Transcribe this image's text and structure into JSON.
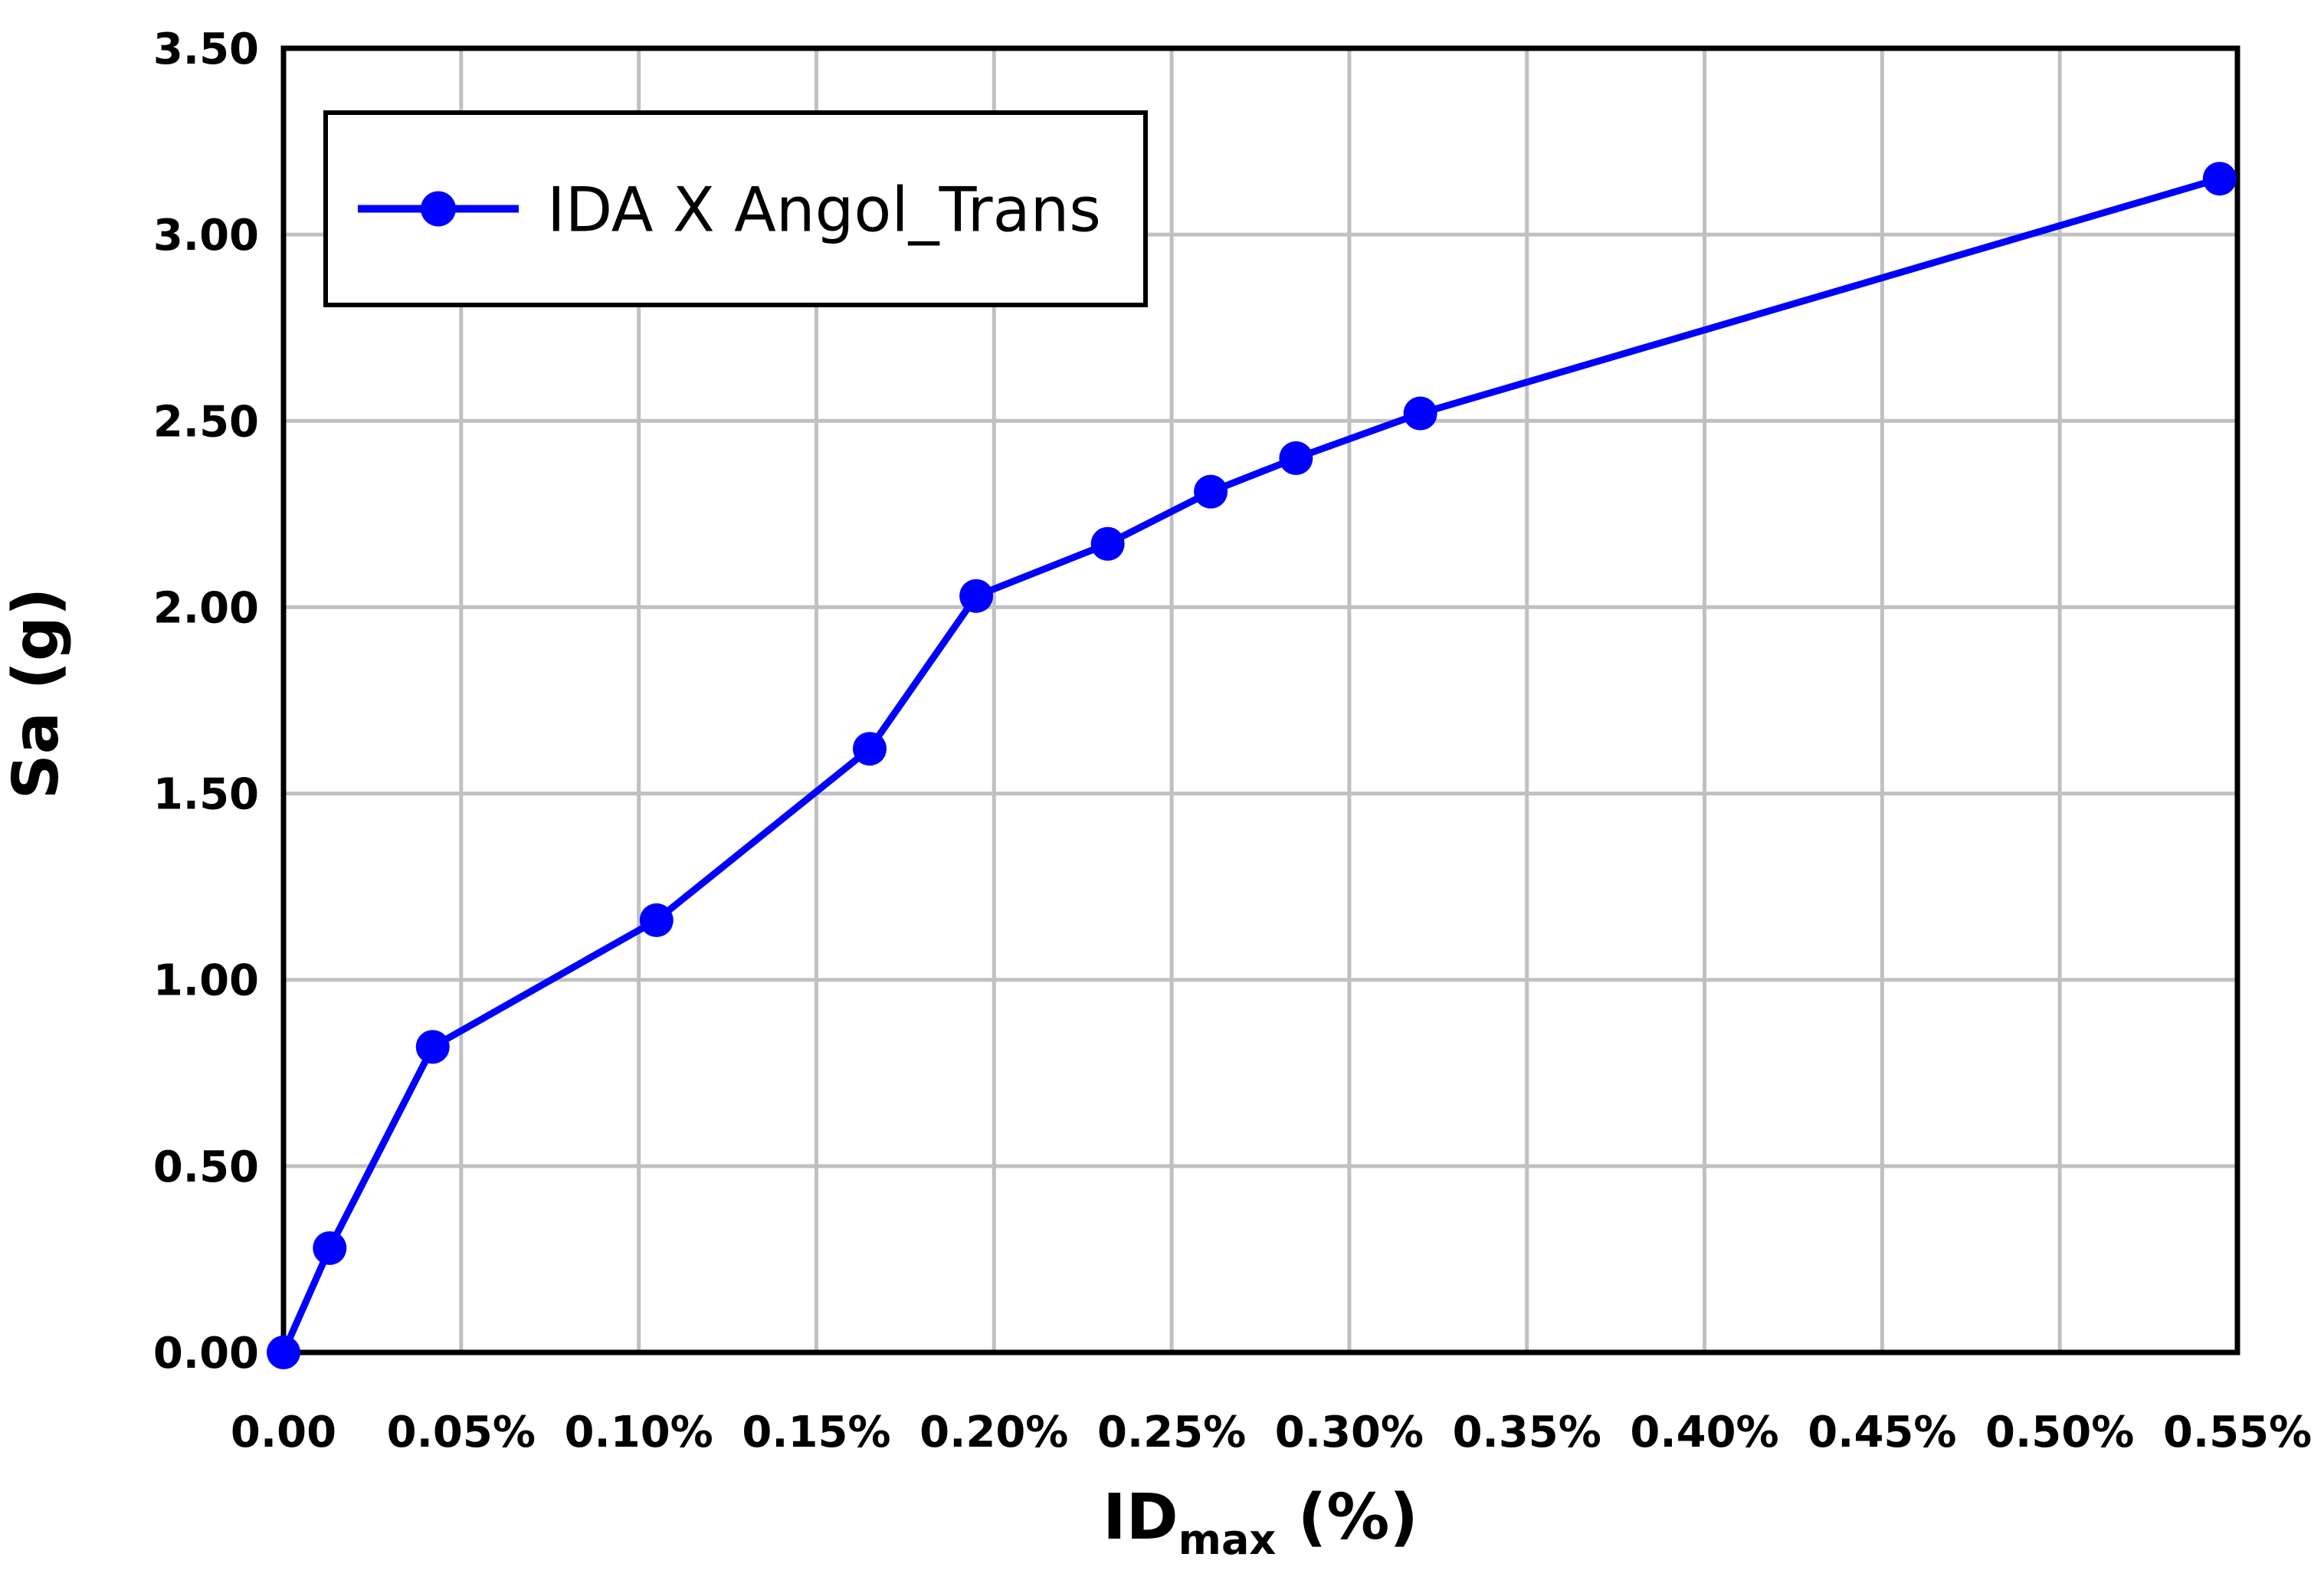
{
  "chart_data": {
    "type": "line",
    "title": "",
    "xlabel": {
      "main": "ID",
      "sub": "max",
      "unit": "(%)"
    },
    "ylabel": "Sa (g)",
    "xlim": [
      0,
      0.55
    ],
    "ylim": [
      0,
      3.5
    ],
    "grid": true,
    "grid_color": "#C0C0C0",
    "frame_color": "#000000",
    "background_color": "#FFFFFF",
    "legend_position": "top-left",
    "x_ticks": [
      {
        "value": 0.0,
        "label": "0.00"
      },
      {
        "value": 0.05,
        "label": "0.05%"
      },
      {
        "value": 0.1,
        "label": "0.10%"
      },
      {
        "value": 0.15,
        "label": "0.15%"
      },
      {
        "value": 0.2,
        "label": "0.20%"
      },
      {
        "value": 0.25,
        "label": "0.25%"
      },
      {
        "value": 0.3,
        "label": "0.30%"
      },
      {
        "value": 0.35,
        "label": "0.35%"
      },
      {
        "value": 0.4,
        "label": "0.40%"
      },
      {
        "value": 0.45,
        "label": "0.45%"
      },
      {
        "value": 0.5,
        "label": "0.50%"
      },
      {
        "value": 0.55,
        "label": "0.55%"
      }
    ],
    "y_ticks": [
      {
        "value": 0.0,
        "label": "0.00"
      },
      {
        "value": 0.5,
        "label": "0.50"
      },
      {
        "value": 1.0,
        "label": "1.00"
      },
      {
        "value": 1.5,
        "label": "1.50"
      },
      {
        "value": 2.0,
        "label": "2.00"
      },
      {
        "value": 2.5,
        "label": "2.50"
      },
      {
        "value": 3.0,
        "label": "3.00"
      },
      {
        "value": 3.5,
        "label": "3.50"
      }
    ],
    "series": [
      {
        "name": "IDA X Angol_Trans",
        "color": "#0000FF",
        "marker": "circle",
        "points": [
          [
            0.0,
            0.0
          ],
          [
            0.013,
            0.28
          ],
          [
            0.042,
            0.82
          ],
          [
            0.105,
            1.16
          ],
          [
            0.165,
            1.62
          ],
          [
            0.195,
            2.03
          ],
          [
            0.232,
            2.17
          ],
          [
            0.261,
            2.31
          ],
          [
            0.285,
            2.4
          ],
          [
            0.32,
            2.52
          ],
          [
            0.545,
            3.15
          ]
        ]
      }
    ]
  }
}
